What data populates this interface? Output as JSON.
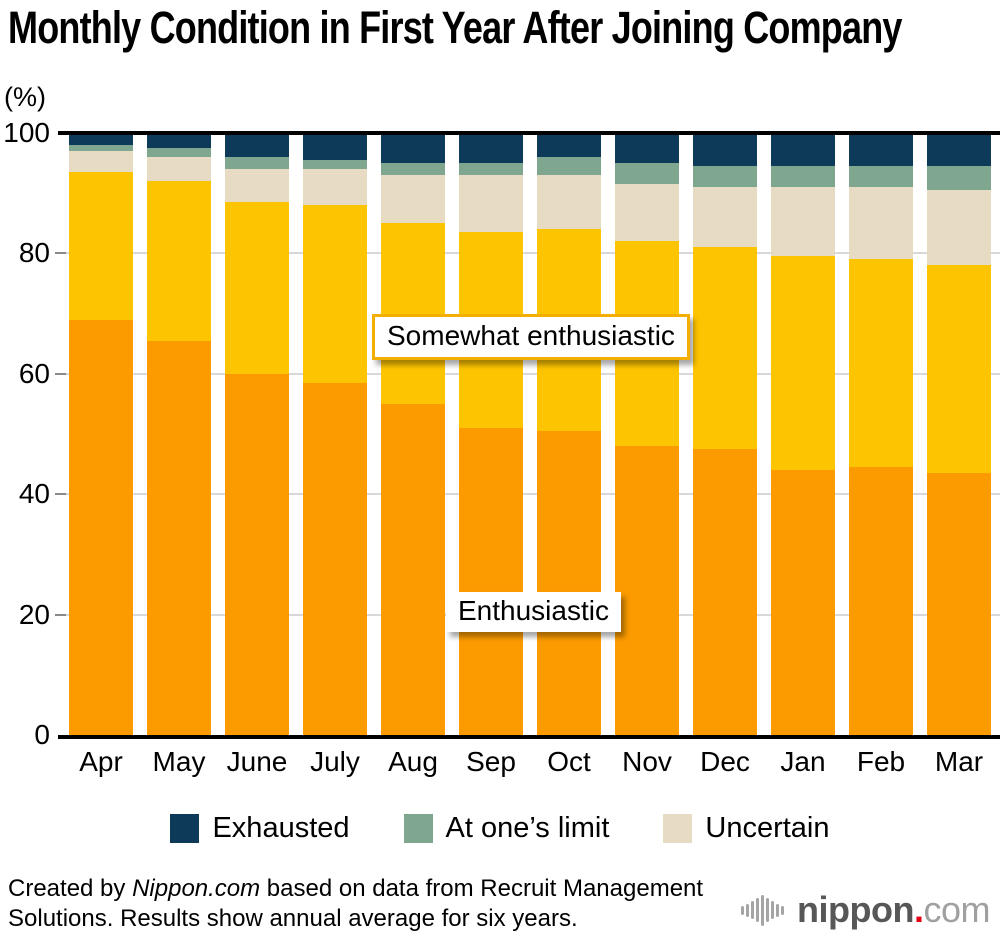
{
  "title": "Monthly Condition in First Year After Joining Company",
  "chart_data": {
    "type": "bar",
    "stacked": true,
    "title": "Monthly Condition in First Year After Joining Company",
    "ylabel": "(%)",
    "ylim": [
      0,
      100
    ],
    "yticks": [
      0,
      20,
      40,
      60,
      80,
      100
    ],
    "grid": true,
    "legend_position": "bottom",
    "categories": [
      "Apr",
      "May",
      "June",
      "July",
      "Aug",
      "Sep",
      "Oct",
      "Nov",
      "Dec",
      "Jan",
      "Feb",
      "Mar"
    ],
    "series": [
      {
        "name": "Enthusiastic",
        "color": "#fb9b00",
        "values": [
          69,
          65.5,
          60,
          58.5,
          55,
          51,
          50.5,
          48,
          47.5,
          44,
          44.5,
          43.5
        ]
      },
      {
        "name": "Somewhat enthusiastic",
        "color": "#fdc401",
        "values": [
          24.5,
          26.5,
          28.5,
          29.5,
          30,
          32.5,
          33.5,
          34,
          33.5,
          35.5,
          34.5,
          34.5
        ]
      },
      {
        "name": "Uncertain",
        "color": "#e8dbc4",
        "values": [
          3.5,
          4,
          5.5,
          6,
          8,
          9.5,
          9,
          9.5,
          10,
          11.5,
          12,
          12.5
        ]
      },
      {
        "name": "At one’s limit",
        "color": "#7fa78f",
        "values": [
          1,
          1.5,
          2,
          1.5,
          2,
          2,
          3,
          3.5,
          3.5,
          3.5,
          3.5,
          4
        ]
      },
      {
        "name": "Exhausted",
        "color": "#0c3a58",
        "values": [
          2,
          2.5,
          4,
          4.5,
          5,
          5,
          4,
          5,
          5.5,
          5.5,
          5.5,
          5.5
        ]
      }
    ],
    "annotations": {
      "somewhat": "Somewhat enthusiastic",
      "enthusiastic": "Enthusiastic"
    }
  },
  "legend": {
    "items": [
      {
        "label": "Exhausted",
        "color": "#0c3a58"
      },
      {
        "label": "At one’s limit",
        "color": "#7fa78f"
      },
      {
        "label": "Uncertain",
        "color": "#e8dbc4"
      }
    ]
  },
  "footer": {
    "line1_prefix": "Created by ",
    "line1_source": "Nippon.com",
    "line1_rest": " based on data from Recruit Management",
    "line2": "Solutions. Results show annual average for six years."
  },
  "logo": {
    "name": "nippon",
    "dot": ".",
    "suffix": "com"
  },
  "colors": {
    "grid": "#d8d8d8",
    "tick": "#8a8a8a",
    "axis": "#000000",
    "annotation_border": "#f3ae00",
    "logo_icon": "#a5a5a5",
    "logo_name": "#575757",
    "logo_dot": "#e60012",
    "logo_suffix": "#9fa0a0"
  }
}
